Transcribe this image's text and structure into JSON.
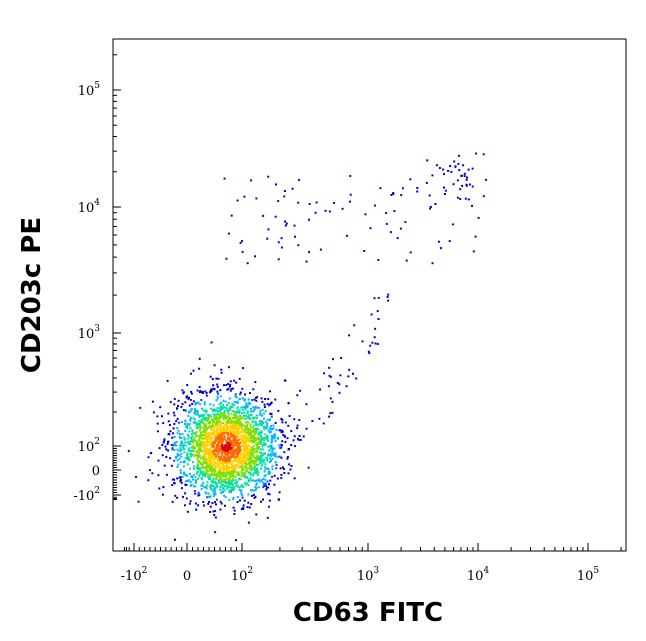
{
  "chart_data": {
    "type": "scatter",
    "title": "",
    "xlabel": "CD63 FITC",
    "ylabel": "CD203c PE",
    "x_scale": "biexponential",
    "y_scale": "biexponential",
    "x_ticks": [
      {
        "label": "-10",
        "exp": "2",
        "value": -100
      },
      {
        "label": "0",
        "exp": "",
        "value": 0
      },
      {
        "label": "10",
        "exp": "2",
        "value": 100
      },
      {
        "label": "10",
        "exp": "3",
        "value": 1000
      },
      {
        "label": "10",
        "exp": "4",
        "value": 10000
      },
      {
        "label": "10",
        "exp": "5",
        "value": 100000
      }
    ],
    "y_ticks": [
      {
        "label": "-10",
        "exp": "2",
        "value": -100
      },
      {
        "label": "0",
        "exp": "",
        "value": 0
      },
      {
        "label": "10",
        "exp": "2",
        "value": 100
      },
      {
        "label": "10",
        "exp": "3",
        "value": 1000
      },
      {
        "label": "10",
        "exp": "4",
        "value": 10000
      },
      {
        "label": "10",
        "exp": "5",
        "value": 100000
      }
    ],
    "density_colors": [
      "#0000cc",
      "#0044ff",
      "#00b4ff",
      "#00e0a0",
      "#7ee000",
      "#ffd000",
      "#ff6a00",
      "#e00000"
    ],
    "populations": [
      {
        "name": "main",
        "center": [
          70,
          100
        ],
        "spread_decades": [
          0.35,
          0.35
        ],
        "count": 2600
      },
      {
        "name": "diagonal",
        "range_x": [
          300,
          1500
        ],
        "range_y": [
          150,
          2000
        ],
        "count": 45
      },
      {
        "name": "upper",
        "range_x": [
          60,
          12000
        ],
        "range_y": [
          3500,
          20000
        ],
        "count": 90
      },
      {
        "name": "upper-right",
        "center": [
          6500,
          18000
        ],
        "spread_decades": [
          0.12,
          0.12
        ],
        "count": 40
      }
    ]
  }
}
